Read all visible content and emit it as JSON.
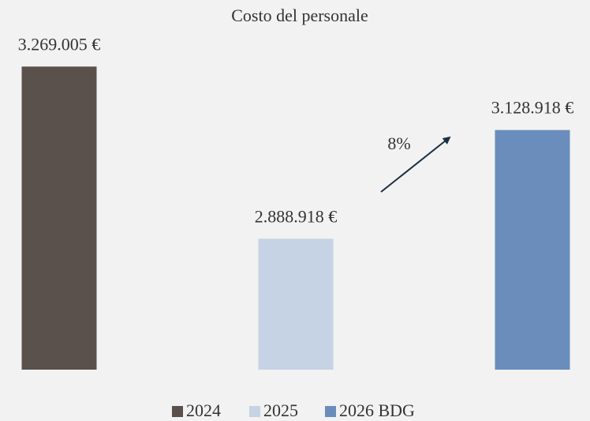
{
  "chart_data": {
    "type": "bar",
    "title": "Costo del personale",
    "series": [
      {
        "name": "2024",
        "color": "#5a514c",
        "values": [
          3269005
        ],
        "value_labels": [
          "3.269.005 €"
        ]
      },
      {
        "name": "2025",
        "color": "#c5d3e4",
        "values": [
          2888918
        ],
        "value_labels": [
          "2.888.918 €"
        ]
      },
      {
        "name": "2026 BDG",
        "color": "#6a8dbb",
        "values": [
          3128918
        ],
        "value_labels": [
          "3.128.918 €"
        ]
      }
    ],
    "ylim": [
      2600000,
      3300000
    ],
    "annotations": [
      "8%"
    ]
  }
}
